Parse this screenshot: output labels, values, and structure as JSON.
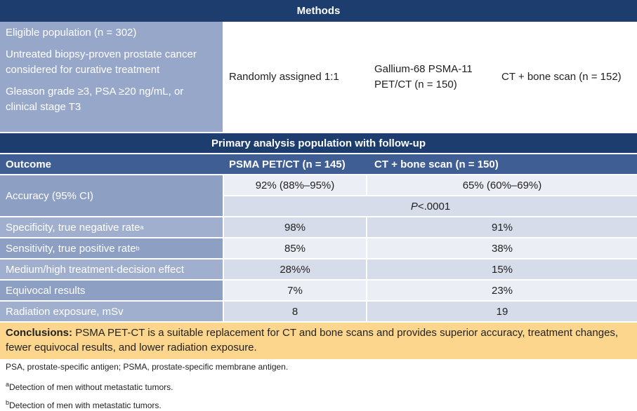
{
  "methods": {
    "title": "Methods",
    "population": [
      "Eligible population (n = 302)",
      "Untreated biopsy-proven prostate cancer considered for curative treatment",
      "Gleason grade ≥3, PSA ≥20 ng/mL, or clinical stage T3"
    ],
    "randomization": "Randomly assigned 1:1",
    "arms": [
      "Gallium-68 PSMA-11 PET/CT (n = 150)",
      "CT + bone scan (n = 152)"
    ]
  },
  "results": {
    "title": "Primary analysis population with follow-up",
    "header": [
      "Outcome",
      "PSMA PET/CT (n = 145)",
      "CT + bone scan (n = 150)"
    ],
    "accuracy": {
      "label": "Accuracy (95% CI)",
      "psma": "92% (88%–95%)",
      "ct": "65% (60%–69%)",
      "p_symbol": "P",
      "p_value": "<.0001"
    },
    "rows": [
      {
        "label": "Specificity, true negative rate",
        "note": "a",
        "psma": "98%",
        "ct": "91%"
      },
      {
        "label": "Sensitivity, true positive rate",
        "note": "b",
        "psma": "85%",
        "ct": "38%"
      },
      {
        "label": "Medium/high treatment-decision effect",
        "psma": "28%%",
        "ct": "15%"
      },
      {
        "label": "Equivocal results",
        "psma": "7%",
        "ct": "23%"
      },
      {
        "label": "Radiation exposure, mSv",
        "psma": "8",
        "ct": "19"
      }
    ]
  },
  "conclusions": {
    "label": "Conclusions:",
    "text": "PSMA PET-CT is a suitable replacement for CT and bone scans and provides superior accuracy, treatment changes, fewer equivocal results, and lower radiation exposure."
  },
  "footnotes": [
    {
      "text": "PSA, prostate-specific antigen; PSMA, prostate-specific membrane antigen."
    },
    {
      "mark": "a",
      "text": "Detection of men without metastatic tumors."
    },
    {
      "mark": "b",
      "text": "Detection of men with metastatic tumors."
    }
  ]
}
